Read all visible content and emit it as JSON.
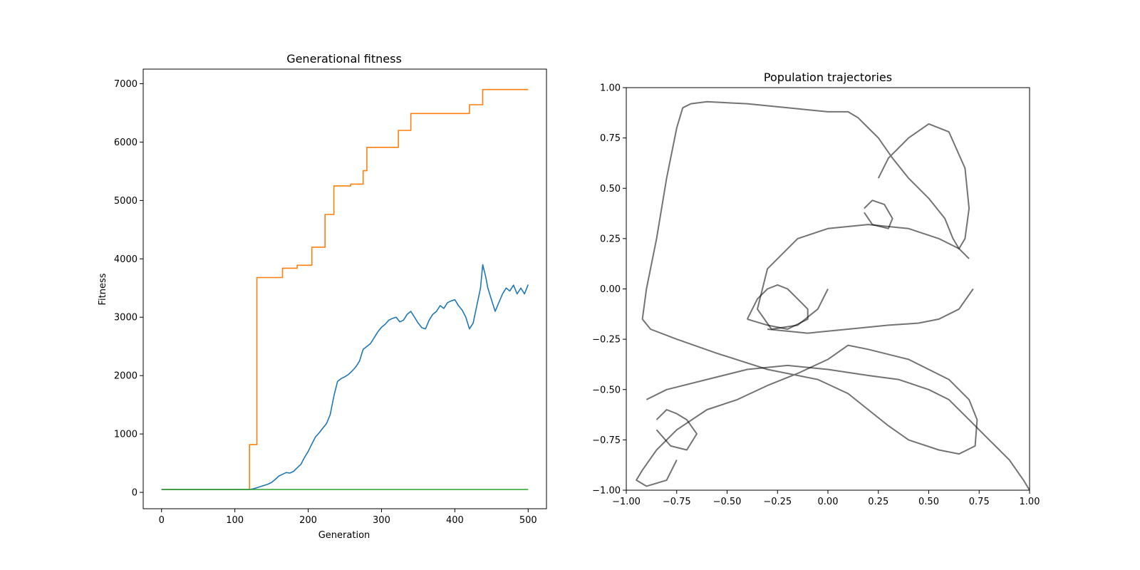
{
  "chart_data": [
    {
      "type": "line",
      "title": "Generational fitness",
      "xlabel": "Generation",
      "ylabel": "Fitness",
      "xlim": [
        -25,
        525
      ],
      "ylim": [
        -280,
        7250
      ],
      "xticks": [
        "0",
        "100",
        "200",
        "300",
        "400",
        "500"
      ],
      "yticks": [
        "0",
        "1000",
        "2000",
        "3000",
        "4000",
        "5000",
        "6000",
        "7000"
      ],
      "grid": false,
      "series": [
        {
          "color": "#ff7f0e",
          "x": [
            0,
            120,
            120,
            130,
            130,
            165,
            165,
            185,
            185,
            205,
            205,
            223,
            223,
            235,
            235,
            258,
            258,
            275,
            275,
            280,
            280,
            323,
            323,
            340,
            340,
            420,
            420,
            438,
            438,
            500
          ],
          "y": [
            50,
            50,
            820,
            820,
            3680,
            3680,
            3840,
            3840,
            3890,
            3890,
            4200,
            4200,
            4760,
            4760,
            5250,
            5250,
            5280,
            5280,
            5510,
            5510,
            5910,
            5910,
            6200,
            6200,
            6490,
            6490,
            6640,
            6640,
            6900,
            6900
          ]
        },
        {
          "color": "#1f77b4",
          "x": [
            0,
            120,
            125,
            130,
            135,
            140,
            145,
            150,
            155,
            160,
            165,
            170,
            175,
            180,
            185,
            190,
            195,
            200,
            205,
            210,
            215,
            220,
            225,
            230,
            235,
            240,
            245,
            250,
            255,
            260,
            265,
            270,
            275,
            280,
            285,
            290,
            295,
            300,
            305,
            310,
            315,
            320,
            325,
            330,
            335,
            340,
            345,
            350,
            355,
            360,
            365,
            370,
            375,
            380,
            385,
            390,
            395,
            400,
            405,
            410,
            415,
            420,
            425,
            430,
            435,
            438,
            442,
            445,
            450,
            455,
            460,
            465,
            470,
            475,
            480,
            485,
            490,
            495,
            500
          ],
          "y": [
            50,
            50,
            60,
            80,
            100,
            120,
            140,
            170,
            220,
            280,
            310,
            340,
            330,
            360,
            420,
            480,
            600,
            700,
            830,
            950,
            1020,
            1100,
            1180,
            1330,
            1650,
            1900,
            1950,
            1980,
            2020,
            2080,
            2150,
            2250,
            2450,
            2500,
            2550,
            2650,
            2750,
            2830,
            2880,
            2950,
            2980,
            3000,
            2920,
            2950,
            3050,
            3100,
            3000,
            2900,
            2820,
            2800,
            2950,
            3050,
            3100,
            3200,
            3150,
            3250,
            3280,
            3300,
            3200,
            3120,
            3000,
            2800,
            2900,
            3200,
            3500,
            3900,
            3700,
            3500,
            3300,
            3100,
            3250,
            3400,
            3500,
            3450,
            3550,
            3400,
            3500,
            3400,
            3560
          ]
        },
        {
          "color": "#2ca02c",
          "x": [
            0,
            500
          ],
          "y": [
            50,
            50
          ]
        }
      ]
    },
    {
      "type": "line",
      "title": "Population trajectories",
      "xlabel": "",
      "ylabel": "",
      "xlim": [
        -1,
        1
      ],
      "ylim": [
        -1,
        1
      ],
      "xticks": [
        "−1.00",
        "−0.75",
        "−0.50",
        "−0.25",
        "0.00",
        "0.25",
        "0.50",
        "0.75",
        "1.00"
      ],
      "yticks": [
        "−1.00",
        "−0.75",
        "−0.50",
        "−0.25",
        "0.00",
        "0.25",
        "0.50",
        "0.75",
        "1.00"
      ],
      "grid": false,
      "line_color": "#000000",
      "series": [
        {
          "x": [
            -0.72,
            -0.75,
            -0.8,
            -0.85,
            -0.9,
            -0.92,
            -0.88,
            -0.75,
            -0.55,
            -0.3,
            -0.05,
            0.1,
            0.2,
            0.3,
            0.4,
            0.55,
            0.65,
            0.73,
            0.74,
            0.7,
            0.6,
            0.4,
            0.2,
            0.1,
            0.0,
            -0.15,
            -0.3,
            -0.45,
            -0.6,
            -0.75,
            -0.85,
            -0.92,
            -0.95,
            -0.9,
            -0.8,
            -0.75
          ],
          "y": [
            0.9,
            0.8,
            0.55,
            0.25,
            0.0,
            -0.15,
            -0.2,
            -0.25,
            -0.32,
            -0.4,
            -0.45,
            -0.52,
            -0.6,
            -0.68,
            -0.75,
            -0.8,
            -0.82,
            -0.78,
            -0.65,
            -0.55,
            -0.45,
            -0.35,
            -0.3,
            -0.28,
            -0.35,
            -0.42,
            -0.48,
            -0.55,
            -0.6,
            -0.7,
            -0.8,
            -0.9,
            -0.95,
            -0.98,
            -0.95,
            -0.85
          ]
        },
        {
          "x": [
            -0.9,
            -0.8,
            -0.6,
            -0.4,
            -0.2,
            0.0,
            0.2,
            0.35,
            0.5,
            0.6,
            0.7,
            0.8,
            0.9,
            0.97,
            1.0
          ],
          "y": [
            -0.55,
            -0.5,
            -0.45,
            -0.4,
            -0.38,
            -0.4,
            -0.43,
            -0.45,
            -0.5,
            -0.55,
            -0.65,
            -0.75,
            -0.85,
            -0.95,
            -1.0
          ]
        },
        {
          "x": [
            -0.72,
            -0.68,
            -0.6,
            -0.4,
            -0.2,
            0.0,
            0.1,
            0.15,
            0.2,
            0.25,
            0.32,
            0.4,
            0.5,
            0.58,
            0.62,
            0.65,
            0.68,
            0.7,
            0.68,
            0.6,
            0.5,
            0.4,
            0.3,
            0.25
          ],
          "y": [
            0.9,
            0.92,
            0.93,
            0.92,
            0.9,
            0.88,
            0.88,
            0.85,
            0.8,
            0.75,
            0.65,
            0.55,
            0.45,
            0.35,
            0.25,
            0.2,
            0.25,
            0.4,
            0.6,
            0.78,
            0.82,
            0.75,
            0.65,
            0.55
          ]
        },
        {
          "x": [
            0.7,
            0.65,
            0.55,
            0.4,
            0.2,
            0.0,
            -0.15,
            -0.3,
            -0.35,
            -0.28,
            -0.15,
            -0.05,
            0.0
          ],
          "y": [
            0.15,
            0.2,
            0.25,
            0.3,
            0.32,
            0.3,
            0.25,
            0.1,
            -0.1,
            -0.2,
            -0.18,
            -0.1,
            0.0
          ]
        },
        {
          "x": [
            -0.4,
            -0.35,
            -0.3,
            -0.25,
            -0.2,
            -0.15,
            -0.1,
            -0.1,
            -0.2,
            -0.3,
            -0.4
          ],
          "y": [
            -0.15,
            -0.05,
            0.0,
            0.02,
            0.0,
            -0.05,
            -0.1,
            -0.15,
            -0.2,
            -0.18,
            -0.15
          ]
        },
        {
          "x": [
            -0.85,
            -0.8,
            -0.75,
            -0.7,
            -0.65,
            -0.7,
            -0.78,
            -0.85
          ],
          "y": [
            -0.65,
            -0.6,
            -0.62,
            -0.65,
            -0.72,
            -0.8,
            -0.78,
            -0.7
          ]
        },
        {
          "x": [
            0.18,
            0.22,
            0.28,
            0.32,
            0.3,
            0.22,
            0.18
          ],
          "y": [
            0.4,
            0.44,
            0.42,
            0.35,
            0.3,
            0.32,
            0.38
          ]
        },
        {
          "x": [
            -0.3,
            -0.1,
            0.1,
            0.3,
            0.45,
            0.55,
            0.65,
            0.72
          ],
          "y": [
            -0.2,
            -0.22,
            -0.2,
            -0.18,
            -0.17,
            -0.15,
            -0.1,
            0.0
          ]
        }
      ]
    }
  ]
}
